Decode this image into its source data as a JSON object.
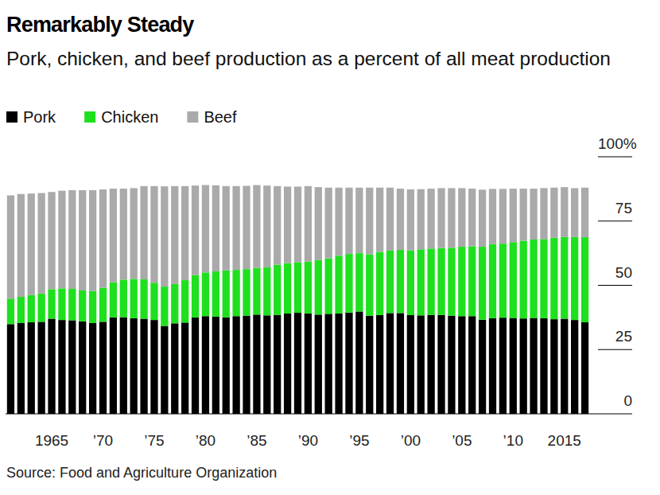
{
  "chart_data": {
    "type": "bar",
    "stacked": true,
    "title": "Remarkably Steady",
    "subtitle": "Pork, chicken, and beef production as a percent of all meat production",
    "source": "Source: Food and Agriculture Organization",
    "legend": "top-left",
    "grid": false,
    "categories": [
      null,
      null,
      null,
      null,
      "1965",
      null,
      null,
      null,
      null,
      "’70",
      null,
      null,
      null,
      null,
      "’75",
      null,
      null,
      null,
      null,
      "’80",
      null,
      null,
      null,
      null,
      "’85",
      null,
      null,
      null,
      null,
      "’90",
      null,
      null,
      null,
      null,
      "’95",
      null,
      null,
      null,
      null,
      "’00",
      null,
      null,
      null,
      null,
      "’05",
      null,
      null,
      null,
      null,
      "’10",
      null,
      null,
      null,
      null,
      "2015",
      null,
      null
    ],
    "ylim": [
      0,
      100
    ],
    "yticks": [
      0,
      25,
      50,
      75,
      {
        "value": 100,
        "label": "100%"
      }
    ],
    "series": [
      {
        "name": "Pork",
        "color": "#000000",
        "values": [
          34.9,
          35.3,
          35.6,
          35.8,
          37.0,
          36.5,
          36.4,
          36.0,
          35.3,
          35.8,
          37.5,
          37.6,
          37.2,
          37.0,
          36.5,
          34.2,
          35.2,
          35.5,
          37.5,
          38.0,
          37.8,
          37.5,
          38.0,
          38.2,
          38.6,
          38.3,
          38.5,
          39.0,
          39.3,
          39.0,
          38.6,
          38.9,
          39.0,
          39.4,
          39.8,
          38.2,
          38.4,
          39.2,
          39.2,
          38.4,
          38.3,
          38.5,
          38.5,
          38.2,
          38.0,
          38.0,
          36.6,
          37.2,
          37.4,
          37.3,
          37.1,
          37.3,
          37.2,
          36.8,
          37.0,
          36.5,
          35.6
        ]
      },
      {
        "name": "Chicken",
        "color": "#1ee01e",
        "values": [
          9.9,
          10.2,
          10.6,
          11.0,
          11.5,
          12.3,
          12.2,
          12.0,
          12.5,
          13.2,
          13.7,
          14.6,
          15.3,
          15.3,
          14.5,
          15.3,
          15.3,
          16.5,
          16.5,
          17.0,
          17.6,
          18.3,
          18.0,
          18.1,
          18.2,
          18.7,
          19.5,
          19.6,
          19.7,
          20.2,
          21.2,
          21.6,
          22.5,
          22.8,
          22.7,
          23.8,
          24.6,
          24.3,
          24.6,
          25.2,
          25.7,
          25.8,
          26.0,
          26.4,
          27.0,
          27.2,
          28.4,
          28.8,
          28.8,
          29.5,
          30.2,
          30.5,
          30.8,
          31.7,
          31.8,
          32.3,
          33.1
        ]
      },
      {
        "name": "Beef",
        "color": "#aaaaaa",
        "values": [
          40.2,
          40.0,
          39.5,
          39.1,
          37.8,
          38.0,
          38.4,
          39.0,
          39.2,
          38.3,
          36.4,
          35.4,
          35.3,
          36.3,
          37.6,
          39.0,
          38.1,
          36.6,
          34.8,
          34.0,
          33.5,
          32.8,
          32.6,
          32.4,
          32.2,
          31.8,
          30.6,
          29.8,
          29.4,
          29.4,
          28.4,
          27.5,
          26.5,
          25.8,
          25.5,
          26.0,
          25.0,
          24.5,
          23.8,
          23.7,
          23.4,
          23.3,
          23.3,
          23.2,
          22.8,
          22.4,
          22.2,
          21.5,
          21.3,
          20.8,
          20.3,
          19.8,
          19.8,
          19.5,
          19.4,
          19.0,
          19.3
        ]
      }
    ]
  }
}
